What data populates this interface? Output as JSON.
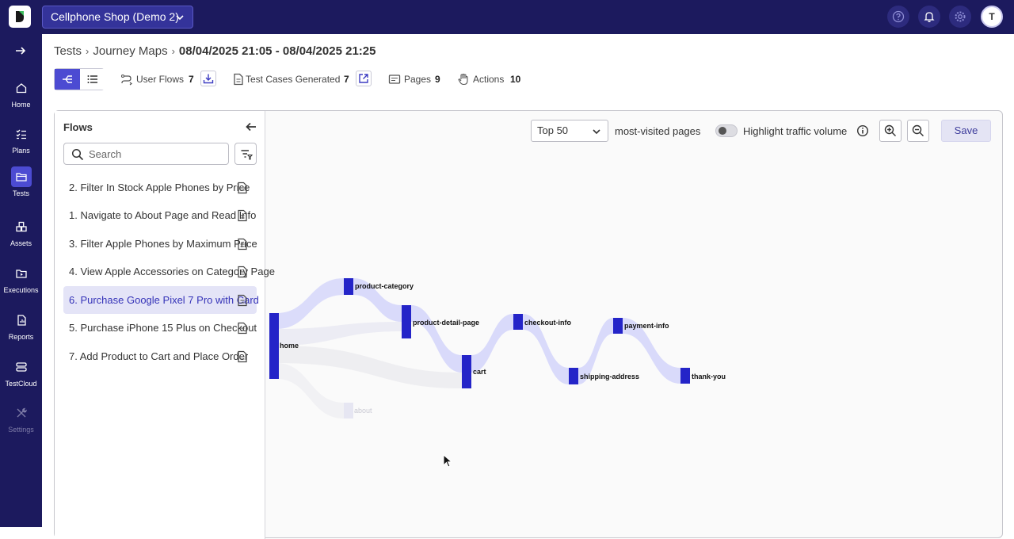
{
  "header": {
    "project": "Cellphone Shop (Demo 2)",
    "avatar_initial": "T",
    "icons": [
      "help-icon",
      "bell-icon",
      "gear-icon"
    ]
  },
  "nav": {
    "items": [
      {
        "label": "Home",
        "icon": "home-icon"
      },
      {
        "label": "Plans",
        "icon": "checklist-icon"
      },
      {
        "label": "Tests",
        "icon": "folder-icon",
        "active": true
      },
      {
        "label": "Assets",
        "icon": "boxes-icon"
      },
      {
        "label": "Executions",
        "icon": "play-folder-icon"
      },
      {
        "label": "Reports",
        "icon": "report-icon"
      },
      {
        "label": "TestCloud",
        "icon": "server-icon"
      },
      {
        "label": "Settings",
        "icon": "tools-icon",
        "disabled": true
      }
    ]
  },
  "breadcrumb": {
    "root": "Tests",
    "section": "Journey Maps",
    "current": "08/04/2025 21:05 - 08/04/2025 21:25"
  },
  "stats": {
    "user_flows_label": "User Flows",
    "user_flows_count": "7",
    "test_cases_label": "Test Cases Generated",
    "test_cases_count": "7",
    "pages_label": "Pages",
    "pages_count": "9",
    "actions_label": "Actions",
    "actions_count": "10"
  },
  "flows": {
    "title": "Flows",
    "search_placeholder": "Search",
    "items": [
      {
        "label": "2.  Filter In Stock Apple Phones by Price"
      },
      {
        "label": "1.  Navigate to About Page and Read Info"
      },
      {
        "label": "3.  Filter Apple Phones by Maximum Price"
      },
      {
        "label": "4.  View Apple Accessories on Category Page"
      },
      {
        "label": "6.  Purchase Google Pixel 7 Pro with Card",
        "selected": true
      },
      {
        "label": "5.  Purchase iPhone 15 Plus on Checkout"
      },
      {
        "label": "7.  Add Product to Cart and Place Order"
      }
    ]
  },
  "toolbar": {
    "top_select": "Top 50",
    "most_visited": "most-visited pages",
    "highlight": "Highlight traffic volume",
    "highlight_on": false,
    "save": "Save"
  },
  "journey": {
    "nodes": [
      {
        "id": "home",
        "label": "home"
      },
      {
        "id": "product-category",
        "label": "product-category"
      },
      {
        "id": "product-detail-page",
        "label": "product-detail-page"
      },
      {
        "id": "cart",
        "label": "cart"
      },
      {
        "id": "checkout-info",
        "label": "checkout-info"
      },
      {
        "id": "shipping-address",
        "label": "shipping-address"
      },
      {
        "id": "payment-info",
        "label": "payment-info"
      },
      {
        "id": "thank-you",
        "label": "thank-you"
      },
      {
        "id": "about",
        "label": "about",
        "faded": true
      }
    ],
    "colors": {
      "node": "#2424c8",
      "link": "#d9dafa",
      "faded_link": "#ececf1",
      "faded_node": "#e6e6f2"
    }
  }
}
